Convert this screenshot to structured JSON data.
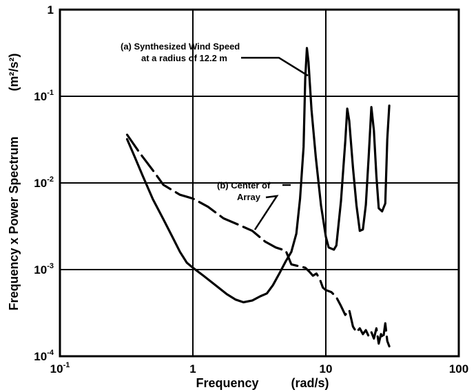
{
  "chart_data": {
    "type": "line",
    "title": "",
    "xlabel": "Frequency",
    "xunit": "(rad/s)",
    "ylabel": "Frequency x Power Spectrum",
    "yunit": "(m²/s²)",
    "xscale": "log",
    "yscale": "log",
    "xlim": [
      0.1,
      100
    ],
    "ylim": [
      0.0001,
      1
    ],
    "grid": true,
    "x_ticks": [
      {
        "value": 0.1,
        "base": "10",
        "exp": "-1"
      },
      {
        "value": 1,
        "base": "1",
        "exp": ""
      },
      {
        "value": 10,
        "base": "10",
        "exp": ""
      },
      {
        "value": 100,
        "base": "100",
        "exp": ""
      }
    ],
    "y_ticks": [
      {
        "value": 0.0001,
        "base": "10",
        "exp": "-4"
      },
      {
        "value": 0.001,
        "base": "10",
        "exp": "-3"
      },
      {
        "value": 0.01,
        "base": "10",
        "exp": "-2"
      },
      {
        "value": 0.1,
        "base": "10",
        "exp": "-1"
      },
      {
        "value": 1,
        "base": "1",
        "exp": ""
      }
    ],
    "series": [
      {
        "name": "(a) Synthesized Wind Speed at a radius of 12.2 m",
        "style": "solid",
        "points": [
          [
            0.32,
            0.032
          ],
          [
            0.36,
            0.021
          ],
          [
            0.42,
            0.012
          ],
          [
            0.5,
            0.0065
          ],
          [
            0.6,
            0.0038
          ],
          [
            0.7,
            0.0024
          ],
          [
            0.8,
            0.0016
          ],
          [
            0.9,
            0.0012
          ],
          [
            1.0,
            0.00105
          ],
          [
            1.2,
            0.00085
          ],
          [
            1.5,
            0.00065
          ],
          [
            1.8,
            0.00052
          ],
          [
            2.1,
            0.00045
          ],
          [
            2.4,
            0.00042
          ],
          [
            2.8,
            0.00044
          ],
          [
            3.2,
            0.00049
          ],
          [
            3.6,
            0.00053
          ],
          [
            4.0,
            0.00066
          ],
          [
            4.5,
            0.00092
          ],
          [
            5.0,
            0.00125
          ],
          [
            5.5,
            0.0016
          ],
          [
            6.0,
            0.0026
          ],
          [
            6.4,
            0.0066
          ],
          [
            6.8,
            0.026
          ],
          [
            7.0,
            0.16
          ],
          [
            7.2,
            0.36
          ],
          [
            7.4,
            0.25
          ],
          [
            7.8,
            0.07
          ],
          [
            8.4,
            0.02
          ],
          [
            9.2,
            0.0055
          ],
          [
            10.0,
            0.0024
          ],
          [
            10.5,
            0.0018
          ],
          [
            11.5,
            0.0017
          ],
          [
            12.0,
            0.0019
          ],
          [
            13.0,
            0.0062
          ],
          [
            14.0,
            0.03
          ],
          [
            14.5,
            0.072
          ],
          [
            15.0,
            0.052
          ],
          [
            16.0,
            0.015
          ],
          [
            17.0,
            0.0055
          ],
          [
            18.0,
            0.0028
          ],
          [
            19.0,
            0.0029
          ],
          [
            20.0,
            0.0056
          ],
          [
            21.0,
            0.02
          ],
          [
            22.0,
            0.075
          ],
          [
            23.0,
            0.04
          ],
          [
            24.0,
            0.012
          ],
          [
            25.0,
            0.0051
          ],
          [
            26.5,
            0.0047
          ],
          [
            28.0,
            0.0058
          ],
          [
            29.0,
            0.032
          ],
          [
            30.0,
            0.078
          ]
        ]
      },
      {
        "name": "(b) Center of Array",
        "style": "dashed",
        "points": [
          [
            0.32,
            0.036
          ],
          [
            0.4,
            0.022
          ],
          [
            0.5,
            0.014
          ],
          [
            0.6,
            0.0095
          ],
          [
            0.8,
            0.0073
          ],
          [
            1.0,
            0.0066
          ],
          [
            1.3,
            0.0053
          ],
          [
            1.7,
            0.0039
          ],
          [
            2.2,
            0.0033
          ],
          [
            2.8,
            0.0028
          ],
          [
            3.5,
            0.0021
          ],
          [
            4.2,
            0.0018
          ],
          [
            5.0,
            0.00165
          ],
          [
            5.5,
            0.00115
          ],
          [
            6.2,
            0.0011
          ],
          [
            7.0,
            0.00105
          ],
          [
            7.5,
            0.00095
          ],
          [
            8.0,
            0.00085
          ],
          [
            8.5,
            0.0009
          ],
          [
            9.0,
            0.00078
          ],
          [
            9.5,
            0.00062
          ],
          [
            10.0,
            0.00058
          ],
          [
            11.0,
            0.00055
          ],
          [
            12.0,
            0.00048
          ],
          [
            13.0,
            0.00038
          ],
          [
            14.0,
            0.0003
          ],
          [
            15.0,
            0.00034
          ],
          [
            16.0,
            0.00022
          ],
          [
            17.0,
            0.00019
          ],
          [
            18.0,
            0.00021
          ],
          [
            19.0,
            0.00018
          ],
          [
            20.0,
            0.0002
          ],
          [
            21.0,
            0.00017
          ],
          [
            22.0,
            0.00019
          ],
          [
            23.0,
            0.00016
          ],
          [
            24.0,
            0.00021
          ],
          [
            25.0,
            0.00014
          ],
          [
            26.0,
            0.00018
          ],
          [
            27.0,
            0.00016
          ],
          [
            28.0,
            0.00024
          ],
          [
            29.0,
            0.00015
          ],
          [
            30.0,
            0.00013
          ]
        ]
      }
    ],
    "annotations": {
      "a_line1": "(a) Synthesized Wind Speed",
      "a_line2": "at a radius of 12.2 m",
      "b_line1": "(b) Center of",
      "b_line2": "Array"
    }
  }
}
